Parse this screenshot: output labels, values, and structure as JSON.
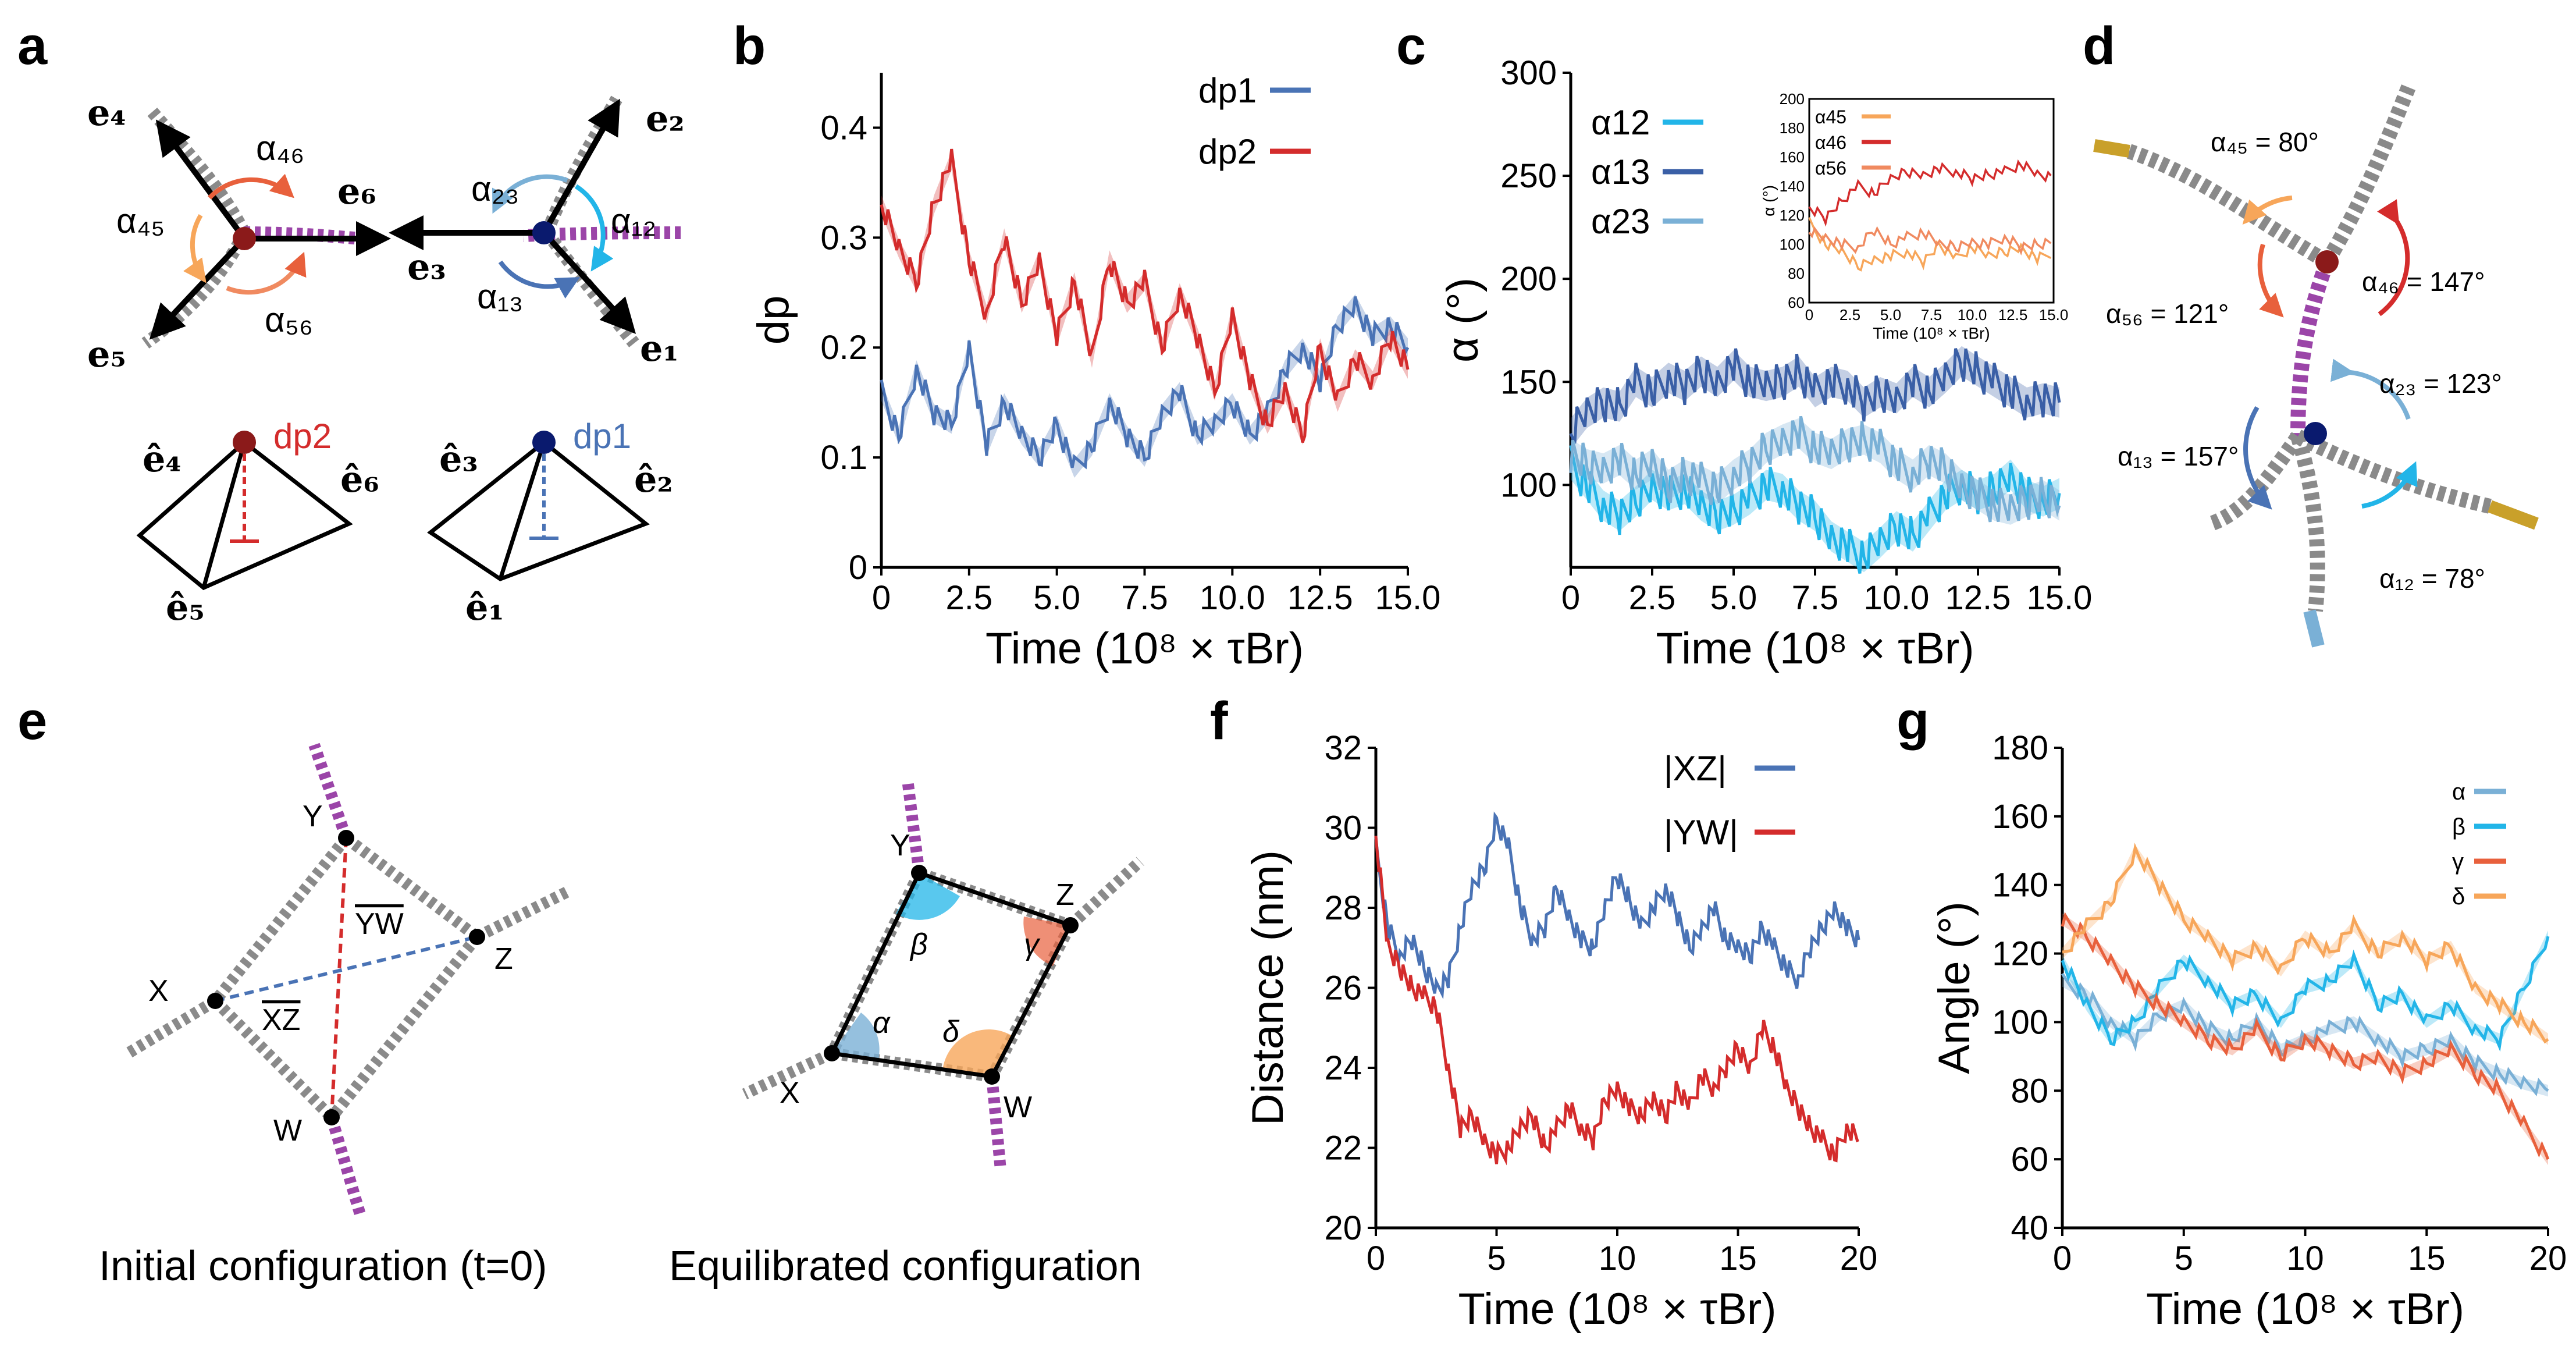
{
  "panel_labels": {
    "a": "a",
    "b": "b",
    "c": "c",
    "d": "d",
    "e": "e",
    "f": "f",
    "g": "g"
  },
  "panel_a": {
    "vectors": [
      "e₄",
      "e₆",
      "e₅",
      "e₂",
      "e₃",
      "e₁"
    ],
    "angles": [
      "α₄₆",
      "α₄₅",
      "α₅₆",
      "α₂₃",
      "α₁₂",
      "α₁₃"
    ],
    "unit_vectors": [
      "ê₄",
      "ê₆",
      "ê₅",
      "ê₃",
      "ê₂",
      "ê₁"
    ],
    "dp_labels": [
      "dp2",
      "dp1"
    ]
  },
  "panel_d": {
    "annotations": [
      "α₄₅ = 80°",
      "α₄₆ = 147°",
      "α₅₆ = 121°",
      "α₂₃ = 123°",
      "α₁₃ = 157°",
      "α₁₂ = 78°"
    ]
  },
  "panel_e": {
    "caption_left": "Initial configuration (t=0)",
    "caption_right": "Equilibrated configuration",
    "left_nodes": [
      "Y",
      "Z",
      "X",
      "W"
    ],
    "left_segments": [
      "YW",
      "XZ"
    ],
    "right_nodes": [
      "Y",
      "Z",
      "X",
      "W"
    ],
    "right_angles": [
      "β",
      "γ",
      "α",
      "δ"
    ]
  },
  "colors": {
    "blue": "#4a73b5",
    "red": "#d42c2c",
    "cyan": "#22b5e8",
    "darkblue": "#3a5fa6",
    "lightblue": "#7ab0d6",
    "orange": "#f7a65a",
    "redorange": "#e8603c",
    "pink": "#f08a60",
    "purple": "#9b45a8",
    "gray": "#8a8a8a",
    "gold": "#c9a02a"
  },
  "chart_data": [
    {
      "id": "b",
      "type": "line",
      "title": "",
      "xlabel": "Time (10⁸ × τBr)",
      "ylabel": "dp",
      "xlim": [
        0,
        15
      ],
      "ylim": [
        0,
        0.45
      ],
      "xticks": [
        "0",
        "2.5",
        "5.0",
        "7.5",
        "10.0",
        "12.5",
        "15.0"
      ],
      "yticks": [
        "0",
        "0.1",
        "0.2",
        "0.3",
        "0.4"
      ],
      "series": [
        {
          "name": "dp1",
          "color": "#4a73b5",
          "x": [
            0,
            0.5,
            1,
            1.5,
            2,
            2.5,
            3,
            3.5,
            4,
            4.5,
            5,
            5.5,
            6,
            6.5,
            7,
            7.5,
            8,
            8.5,
            9,
            9.5,
            10,
            10.5,
            11,
            11.5,
            12,
            12.5,
            13,
            13.5,
            14,
            14.5,
            15
          ],
          "y": [
            0.16,
            0.12,
            0.18,
            0.14,
            0.13,
            0.2,
            0.11,
            0.15,
            0.12,
            0.1,
            0.13,
            0.09,
            0.11,
            0.15,
            0.12,
            0.1,
            0.14,
            0.16,
            0.12,
            0.13,
            0.15,
            0.12,
            0.14,
            0.18,
            0.2,
            0.17,
            0.22,
            0.24,
            0.21,
            0.22,
            0.2
          ]
        },
        {
          "name": "dp2",
          "color": "#d42c2c",
          "x": [
            0,
            0.5,
            1,
            1.5,
            2,
            2.5,
            3,
            3.5,
            4,
            4.5,
            5,
            5.5,
            6,
            6.5,
            7,
            7.5,
            8,
            8.5,
            9,
            9.5,
            10,
            10.5,
            11,
            11.5,
            12,
            12.5,
            13,
            13.5,
            14,
            14.5,
            15
          ],
          "y": [
            0.33,
            0.29,
            0.26,
            0.33,
            0.37,
            0.28,
            0.23,
            0.3,
            0.24,
            0.28,
            0.21,
            0.26,
            0.19,
            0.28,
            0.24,
            0.26,
            0.2,
            0.25,
            0.21,
            0.16,
            0.23,
            0.17,
            0.13,
            0.16,
            0.12,
            0.2,
            0.15,
            0.19,
            0.17,
            0.21,
            0.18
          ]
        }
      ]
    },
    {
      "id": "c",
      "type": "line",
      "title": "",
      "xlabel": "Time (10⁸ × τBr)",
      "ylabel": "α (°)",
      "xlim": [
        0,
        15
      ],
      "ylim": [
        60,
        300
      ],
      "xticks": [
        "0",
        "2.5",
        "5.0",
        "7.5",
        "10.0",
        "12.5",
        "15.0"
      ],
      "yticks": [
        "100",
        "150",
        "200",
        "250",
        "300"
      ],
      "series": [
        {
          "name": "α12",
          "color": "#22b5e8",
          "x": [
            0,
            0.5,
            1,
            1.5,
            2,
            2.5,
            3,
            3.5,
            4,
            4.5,
            5,
            5.5,
            6,
            6.5,
            7,
            7.5,
            8,
            8.5,
            9,
            9.5,
            10,
            10.5,
            11,
            11.5,
            12,
            12.5,
            13,
            13.5,
            14,
            14.5,
            15
          ],
          "y": [
            110,
            100,
            90,
            85,
            92,
            100,
            95,
            98,
            90,
            85,
            88,
            93,
            100,
            98,
            90,
            85,
            75,
            70,
            65,
            72,
            80,
            75,
            85,
            95,
            100,
            95,
            98,
            105,
            95,
            92,
            96
          ]
        },
        {
          "name": "α13",
          "color": "#3a5fa6",
          "x": [
            0,
            0.5,
            1,
            1.5,
            2,
            2.5,
            3,
            3.5,
            4,
            4.5,
            5,
            5.5,
            6,
            6.5,
            7,
            7.5,
            8,
            8.5,
            9,
            9.5,
            10,
            10.5,
            11,
            11.5,
            12,
            12.5,
            13,
            13.5,
            14,
            14.5,
            15
          ],
          "y": [
            125,
            135,
            140,
            138,
            150,
            145,
            152,
            148,
            155,
            150,
            158,
            150,
            148,
            150,
            155,
            145,
            150,
            148,
            140,
            145,
            142,
            150,
            145,
            152,
            160,
            155,
            150,
            145,
            140,
            142,
            140
          ]
        },
        {
          "name": "α23",
          "color": "#7ab0d6",
          "x": [
            0,
            0.5,
            1,
            1.5,
            2,
            2.5,
            3,
            3.5,
            4,
            4.5,
            5,
            5.5,
            6,
            6.5,
            7,
            7.5,
            8,
            8.5,
            9,
            9.5,
            10,
            10.5,
            11,
            11.5,
            12,
            12.5,
            13,
            13.5,
            14,
            14.5,
            15
          ],
          "y": [
            115,
            110,
            108,
            112,
            105,
            110,
            100,
            105,
            102,
            98,
            105,
            110,
            118,
            122,
            125,
            118,
            115,
            120,
            122,
            118,
            110,
            105,
            112,
            108,
            100,
            95,
            90,
            88,
            92,
            95,
            90
          ]
        }
      ],
      "inset": {
        "xlabel": "Time (10⁸ × τBr)",
        "ylabel": "α (°)",
        "xlim": [
          0,
          15
        ],
        "ylim": [
          60,
          200
        ],
        "xticks": [
          "0",
          "2.5",
          "5.0",
          "7.5",
          "10.0",
          "12.5",
          "15.0"
        ],
        "yticks": [
          "60",
          "80",
          "100",
          "120",
          "140",
          "160",
          "180",
          "200"
        ],
        "series": [
          {
            "name": "α45",
            "color": "#f7a65a",
            "x": [
              0,
              1,
              2,
              3,
              4,
              5,
              6,
              7,
              8,
              9,
              10,
              11,
              12,
              13,
              14,
              15
            ],
            "y": [
              115,
              100,
              95,
              85,
              90,
              92,
              95,
              88,
              100,
              90,
              98,
              92,
              95,
              98,
              90,
              95
            ]
          },
          {
            "name": "α46",
            "color": "#d42c2c",
            "x": [
              0,
              1,
              2,
              3,
              4,
              5,
              6,
              7,
              8,
              9,
              10,
              11,
              12,
              13,
              14,
              15
            ],
            "y": [
              125,
              118,
              130,
              140,
              135,
              145,
              150,
              148,
              152,
              150,
              145,
              148,
              150,
              155,
              148,
              145
            ]
          },
          {
            "name": "α56",
            "color": "#f08a60",
            "x": [
              0,
              1,
              2,
              3,
              4,
              5,
              6,
              7,
              8,
              9,
              10,
              11,
              12,
              13,
              14,
              15
            ],
            "y": [
              110,
              105,
              100,
              98,
              110,
              100,
              105,
              108,
              100,
              98,
              102,
              100,
              105,
              98,
              100,
              102
            ]
          }
        ]
      }
    },
    {
      "id": "f",
      "type": "line",
      "title": "",
      "xlabel": "Time (10⁸ × τBr)",
      "ylabel": "Distance (nm)",
      "xlim": [
        0,
        20
      ],
      "ylim": [
        20,
        32
      ],
      "xticks": [
        "0",
        "5",
        "10",
        "15",
        "20"
      ],
      "yticks": [
        "20",
        "22",
        "24",
        "26",
        "28",
        "30",
        "32"
      ],
      "series": [
        {
          "name": "|XZ|",
          "color": "#4a73b5",
          "x": [
            0,
            0.5,
            1,
            1.5,
            2,
            2.5,
            3,
            3.5,
            4,
            4.5,
            5,
            5.5,
            6,
            6.5,
            7,
            7.5,
            8,
            8.5,
            9,
            9.5,
            10,
            10.5,
            11,
            11.5,
            12,
            12.5,
            13,
            13.5,
            14,
            14.5,
            15,
            15.5,
            16,
            16.5,
            17,
            17.5,
            18,
            18.5,
            19,
            19.5,
            20
          ],
          "y": [
            29.5,
            27.5,
            26.8,
            27.2,
            26.5,
            26.0,
            26.2,
            27.5,
            28.5,
            29.0,
            30.2,
            29.5,
            28.0,
            27.2,
            27.5,
            28.5,
            27.8,
            27.2,
            27.0,
            28.0,
            28.8,
            28.2,
            27.5,
            28.0,
            28.5,
            27.8,
            27.0,
            27.5,
            28.0,
            27.2,
            27.0,
            26.8,
            27.5,
            27.0,
            26.5,
            26.2,
            27.0,
            27.5,
            28.0,
            27.5,
            27.2
          ]
        },
        {
          "name": "|YW|",
          "color": "#d42c2c",
          "x": [
            0,
            0.5,
            1,
            1.5,
            2,
            2.5,
            3,
            3.5,
            4,
            4.5,
            5,
            5.5,
            6,
            6.5,
            7,
            7.5,
            8,
            8.5,
            9,
            9.5,
            10,
            10.5,
            11,
            11.5,
            12,
            12.5,
            13,
            13.5,
            14,
            14.5,
            15,
            15.5,
            16,
            16.5,
            17,
            17.5,
            18,
            18.5,
            19,
            19.5,
            20
          ],
          "y": [
            29.8,
            27.0,
            26.5,
            26.0,
            25.8,
            25.5,
            24.0,
            22.5,
            22.8,
            22.2,
            21.8,
            22.0,
            22.5,
            22.8,
            22.0,
            22.5,
            23.0,
            22.5,
            22.2,
            23.2,
            23.5,
            23.0,
            22.8,
            23.2,
            22.8,
            23.5,
            23.0,
            23.8,
            23.5,
            24.0,
            24.5,
            24.0,
            25.0,
            24.5,
            23.5,
            23.0,
            22.5,
            22.2,
            21.8,
            22.5,
            22.2
          ]
        }
      ]
    },
    {
      "id": "g",
      "type": "line",
      "title": "",
      "xlabel": "Time (10⁸ × τBr)",
      "ylabel": "Angle (°)",
      "xlim": [
        0,
        20
      ],
      "ylim": [
        40,
        180
      ],
      "xticks": [
        "0",
        "5",
        "10",
        "15",
        "20"
      ],
      "yticks": [
        "40",
        "60",
        "80",
        "100",
        "120",
        "140",
        "160",
        "180"
      ],
      "series": [
        {
          "name": "α",
          "color": "#7ab0d6",
          "x": [
            0,
            1,
            2,
            3,
            4,
            5,
            6,
            7,
            8,
            9,
            10,
            11,
            12,
            13,
            14,
            15,
            16,
            17,
            18,
            19,
            20
          ],
          "y": [
            112,
            108,
            100,
            95,
            102,
            105,
            98,
            95,
            100,
            92,
            95,
            98,
            100,
            95,
            90,
            92,
            95,
            88,
            85,
            82,
            80
          ]
        },
        {
          "name": "β",
          "color": "#22b5e8",
          "x": [
            0,
            1,
            2,
            3,
            4,
            5,
            6,
            7,
            8,
            9,
            10,
            11,
            12,
            13,
            14,
            15,
            16,
            17,
            18,
            19,
            20
          ],
          "y": [
            118,
            105,
            95,
            100,
            110,
            118,
            112,
            105,
            108,
            100,
            110,
            112,
            118,
            105,
            108,
            100,
            105,
            98,
            95,
            110,
            125
          ]
        },
        {
          "name": "γ",
          "color": "#e8603c",
          "x": [
            0,
            1,
            2,
            3,
            4,
            5,
            6,
            7,
            8,
            9,
            10,
            11,
            12,
            13,
            14,
            15,
            16,
            17,
            18,
            19,
            20
          ],
          "y": [
            130,
            125,
            118,
            110,
            105,
            100,
            95,
            92,
            98,
            90,
            95,
            92,
            88,
            90,
            85,
            88,
            92,
            85,
            80,
            70,
            60
          ]
        },
        {
          "name": "δ",
          "color": "#f7a65a",
          "x": [
            0,
            1,
            2,
            3,
            4,
            5,
            6,
            7,
            8,
            9,
            10,
            11,
            12,
            13,
            14,
            15,
            16,
            17,
            18,
            19,
            20
          ],
          "y": [
            120,
            128,
            135,
            150,
            140,
            130,
            125,
            118,
            122,
            115,
            125,
            120,
            128,
            120,
            125,
            118,
            122,
            110,
            105,
            100,
            95
          ]
        }
      ]
    }
  ]
}
